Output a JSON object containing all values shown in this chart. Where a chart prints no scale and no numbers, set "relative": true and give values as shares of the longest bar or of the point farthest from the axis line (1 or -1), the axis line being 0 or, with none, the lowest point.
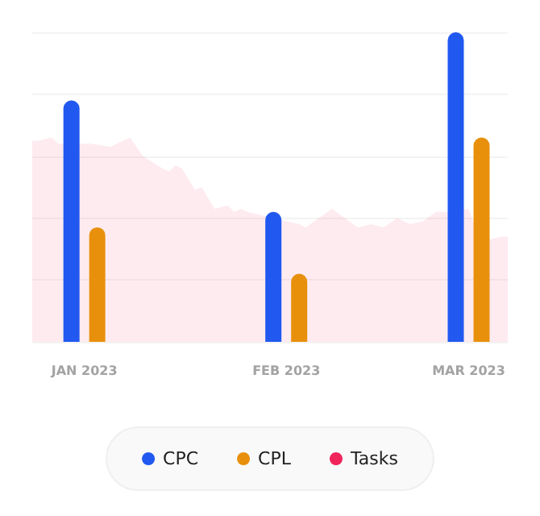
{
  "chart_data": {
    "type": "bar",
    "relative": true,
    "grid": "y",
    "legend": "bottom",
    "xlim": [
      "2022-12-24",
      "2023-03-07"
    ],
    "xticks": [
      {
        "value": "2023-01-01",
        "label": "JAN 2023"
      },
      {
        "value": "2023-02-01",
        "label": "FEB 2023"
      },
      {
        "value": "2023-03-01",
        "label": "MAR 2023"
      }
    ],
    "series": [
      {
        "name": "CPC",
        "color": "#2159f0",
        "x": [
          "2023-01-01",
          "2023-02-01",
          "2023-03-01"
        ],
        "values": [
          0.78,
          0.42,
          1
        ]
      },
      {
        "name": "CPL",
        "color": "#e8900c",
        "x": [
          "2023-01-01",
          "2023-02-01",
          "2023-03-01"
        ],
        "values": [
          0.37,
          0.22,
          0.66
        ]
      },
      {
        "name": "Tasks",
        "type": "area",
        "color": "#f0245a",
        "x": [
          "2022-12-24",
          "2022-12-25",
          "2022-12-27",
          "2022-12-28",
          "2022-12-31",
          "2023-01-02",
          "2023-01-05",
          "2023-01-08",
          "2023-01-10",
          "2023-01-13",
          "2023-01-14",
          "2023-01-15",
          "2023-01-16",
          "2023-01-18",
          "2023-01-19",
          "2023-01-21",
          "2023-01-23",
          "2023-01-24",
          "2023-01-25",
          "2023-01-26",
          "2023-01-28",
          "2023-02-01",
          "2023-02-03",
          "2023-02-04",
          "2023-02-08",
          "2023-02-10",
          "2023-02-12",
          "2023-02-14",
          "2023-02-16",
          "2023-02-18",
          "2023-02-20",
          "2023-02-22",
          "2023-02-24",
          "2023-02-26",
          "2023-03-01",
          "2023-03-02",
          "2023-03-04",
          "2023-03-06",
          "2023-03-07"
        ],
        "values": [
          0.65,
          0.65,
          0.66,
          0.64,
          0.64,
          0.64,
          0.63,
          0.66,
          0.6,
          0.56,
          0.55,
          0.57,
          0.56,
          0.49,
          0.5,
          0.43,
          0.44,
          0.42,
          0.43,
          0.42,
          0.41,
          0.39,
          0.38,
          0.37,
          0.43,
          0.4,
          0.37,
          0.38,
          0.37,
          0.4,
          0.38,
          0.39,
          0.42,
          0.42,
          0.43,
          0.37,
          0.33,
          0.34,
          0.34
        ]
      }
    ]
  }
}
